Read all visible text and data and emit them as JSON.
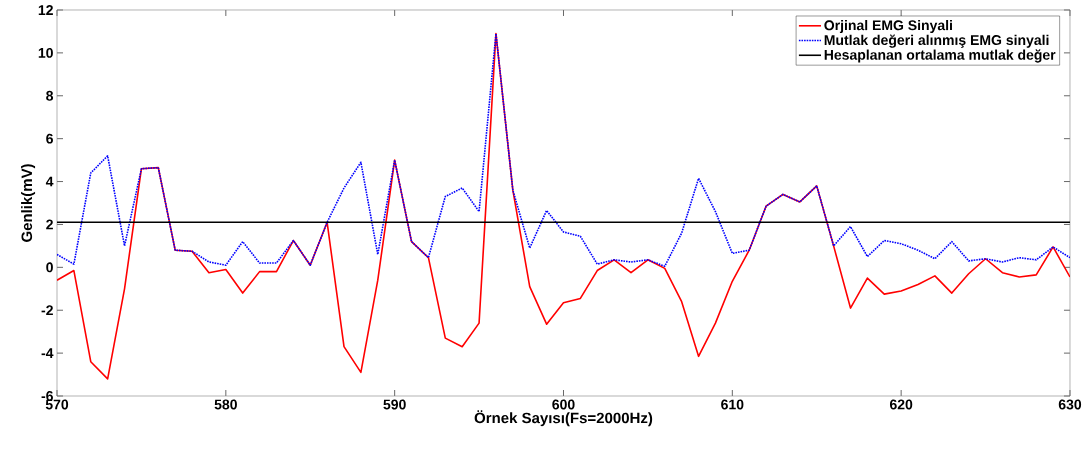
{
  "chart_data": {
    "type": "line",
    "xlabel": "Örnek Sayısı(Fs=2000Hz)",
    "ylabel": "Genlik(mV)",
    "x": [
      570,
      571,
      572,
      573,
      574,
      575,
      576,
      577,
      578,
      579,
      580,
      581,
      582,
      583,
      584,
      585,
      586,
      587,
      588,
      589,
      590,
      591,
      592,
      593,
      594,
      595,
      596,
      597,
      598,
      599,
      600,
      601,
      602,
      603,
      604,
      605,
      606,
      607,
      608,
      609,
      610,
      611,
      612,
      613,
      614,
      615,
      616,
      617,
      618,
      619,
      620,
      621,
      622,
      623,
      624,
      625,
      626,
      627,
      628,
      629,
      630
    ],
    "series": [
      {
        "name": "Orjinal EMG Sinyali",
        "color": "#ff0000",
        "line_style": "solid",
        "values": [
          -0.6,
          -0.15,
          -4.4,
          -5.2,
          -1.0,
          4.6,
          4.65,
          0.8,
          0.75,
          -0.25,
          -0.1,
          -1.2,
          -0.2,
          -0.2,
          1.25,
          0.1,
          2.1,
          -3.7,
          -4.9,
          -0.6,
          5.0,
          1.2,
          0.45,
          -3.3,
          -3.7,
          -2.6,
          10.9,
          3.6,
          -0.9,
          -2.65,
          -1.65,
          -1.45,
          -0.15,
          0.35,
          -0.25,
          0.35,
          -0.05,
          -1.6,
          -4.15,
          -2.6,
          -0.65,
          0.8,
          2.85,
          3.4,
          3.05,
          3.8,
          1.0,
          -1.9,
          -0.5,
          -1.25,
          -1.1,
          -0.8,
          -0.4,
          -1.2,
          -0.3,
          0.4,
          -0.25,
          -0.45,
          -0.35,
          0.95,
          -0.45
        ]
      },
      {
        "name": "Mutlak değeri alınmış EMG sinyali",
        "color": "#0000ff",
        "line_style": "dotted",
        "values": [
          0.6,
          0.15,
          4.4,
          5.2,
          1.0,
          4.6,
          4.65,
          0.8,
          0.75,
          0.25,
          0.1,
          1.2,
          0.2,
          0.2,
          1.25,
          0.1,
          2.1,
          3.7,
          4.9,
          0.6,
          5.0,
          1.2,
          0.45,
          3.3,
          3.7,
          2.6,
          10.9,
          3.6,
          0.9,
          2.65,
          1.65,
          1.45,
          0.15,
          0.35,
          0.25,
          0.35,
          0.05,
          1.6,
          4.15,
          2.6,
          0.65,
          0.8,
          2.85,
          3.4,
          3.05,
          3.8,
          1.0,
          1.9,
          0.5,
          1.25,
          1.1,
          0.8,
          0.4,
          1.2,
          0.3,
          0.4,
          0.25,
          0.45,
          0.35,
          0.95,
          0.45
        ]
      }
    ],
    "ref_lines": [
      {
        "axis": "y",
        "value": 2.1,
        "label": "Hesaplanan ortalama mutlak değer",
        "color": "#000000",
        "line_style": "solid"
      }
    ],
    "xlim": [
      570,
      630
    ],
    "ylim": [
      -6,
      12
    ],
    "xticks": [
      570,
      580,
      590,
      600,
      610,
      620,
      630
    ],
    "yticks": [
      -6,
      -4,
      -2,
      0,
      2,
      4,
      6,
      8,
      10,
      12
    ],
    "legend": "top right"
  }
}
